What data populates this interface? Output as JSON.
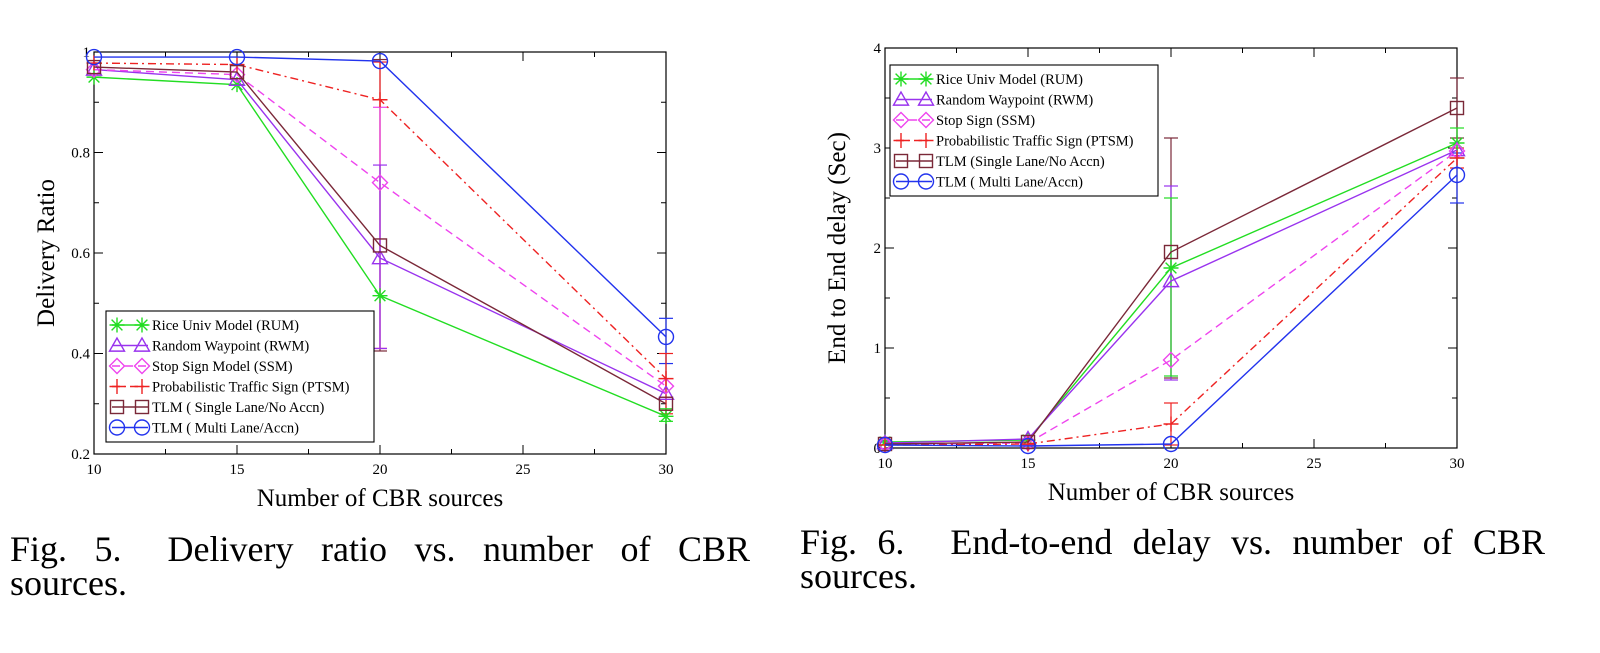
{
  "chart_data": [
    {
      "type": "line",
      "xlabel": "Number of CBR sources",
      "ylabel": "Delivery Ratio",
      "xlim": [
        10,
        30
      ],
      "ylim": [
        0.2,
        1.0
      ],
      "xticks": [
        10,
        15,
        20,
        25,
        30
      ],
      "yticks": [
        0.2,
        0.4,
        0.6,
        0.8,
        1
      ],
      "ytick_labels": [
        "0.2",
        "0.4",
        "0.6",
        "0.8",
        "1"
      ],
      "legend_position": "bottom-left",
      "series": [
        {
          "name": "Rice Univ Model (RUM)",
          "color": "#22dd22",
          "marker": "star",
          "dash": "",
          "x": [
            10,
            15,
            20,
            30
          ],
          "y": [
            0.95,
            0.935,
            0.515,
            0.275
          ]
        },
        {
          "name": "Random Waypoint (RWM)",
          "color": "#9933ee",
          "marker": "triangle",
          "dash": "",
          "x": [
            10,
            15,
            20,
            30
          ],
          "y": [
            0.965,
            0.945,
            0.59,
            0.32
          ]
        },
        {
          "name": "Stop Sign Model (SSM)",
          "color": "#ee44ee",
          "marker": "diamond",
          "dash": "8,5",
          "x": [
            10,
            15,
            20,
            30
          ],
          "y": [
            0.965,
            0.955,
            0.74,
            0.335
          ]
        },
        {
          "name": "Probabilistic Traffic Sign (PTSM)",
          "color": "#ee2222",
          "marker": "plus",
          "dash": "8,4,2,4",
          "x": [
            10,
            15,
            20,
            30
          ],
          "y": [
            0.978,
            0.975,
            0.905,
            0.35
          ]
        },
        {
          "name": "TLM ( Single Lane/No Accn)",
          "color": "#7a2838",
          "marker": "square",
          "dash": "",
          "x": [
            10,
            15,
            20,
            30
          ],
          "y": [
            0.97,
            0.96,
            0.615,
            0.3
          ]
        },
        {
          "name": "TLM ( Multi Lane/Accn)",
          "color": "#2233ee",
          "marker": "circle",
          "dash": "",
          "x": [
            10,
            15,
            20,
            30
          ],
          "y": [
            0.99,
            0.99,
            0.982,
            0.433
          ]
        }
      ],
      "error_bars": [
        {
          "color": "#7a2838",
          "x": 20,
          "low": 0.405,
          "high": 0.985
        },
        {
          "color": "#ee2222",
          "x": 20,
          "low": 0.41,
          "high": 0.98
        },
        {
          "color": "#ee44ee",
          "x": 20,
          "low": 0.41,
          "high": 0.89
        },
        {
          "color": "#9933ee",
          "x": 20,
          "low": 0.41,
          "high": 0.775
        },
        {
          "color": "#2233ee",
          "x": 30,
          "low": 0.38,
          "high": 0.47
        },
        {
          "color": "#ee2222",
          "x": 30,
          "low": 0.28,
          "high": 0.4
        },
        {
          "color": "#22dd22",
          "x": 30,
          "low": 0.265,
          "high": 0.29
        }
      ]
    },
    {
      "type": "line",
      "xlabel": "Number of CBR sources",
      "ylabel": "End to End delay (Sec)",
      "xlim": [
        10,
        30
      ],
      "ylim": [
        0,
        4
      ],
      "xticks": [
        10,
        15,
        20,
        25,
        30
      ],
      "yticks": [
        0,
        1,
        2,
        3,
        4
      ],
      "ytick_labels": [
        "0",
        "1",
        "2",
        "3",
        "4"
      ],
      "legend_position": "top-left",
      "series": [
        {
          "name": "Rice Univ Model (RUM)",
          "color": "#22dd22",
          "marker": "star",
          "dash": "",
          "x": [
            10,
            15,
            20,
            30
          ],
          "y": [
            0.06,
            0.08,
            1.8,
            3.05
          ]
        },
        {
          "name": "Random Waypoint (RWM)",
          "color": "#9933ee",
          "marker": "triangle",
          "dash": "",
          "x": [
            10,
            15,
            20,
            30
          ],
          "y": [
            0.05,
            0.09,
            1.67,
            2.98
          ]
        },
        {
          "name": "Stop Sign (SSM)",
          "color": "#ee44ee",
          "marker": "diamond",
          "dash": "8,5",
          "x": [
            10,
            15,
            20,
            30
          ],
          "y": [
            0.04,
            0.05,
            0.88,
            2.97
          ]
        },
        {
          "name": "Probabilistic Traffic Sign (PTSM)",
          "color": "#ee2222",
          "marker": "plus",
          "dash": "8,4,2,4",
          "x": [
            10,
            15,
            20,
            30
          ],
          "y": [
            0.03,
            0.04,
            0.24,
            2.9
          ]
        },
        {
          "name": "TLM (Single Lane/No Accn)",
          "color": "#7a2838",
          "marker": "square",
          "dash": "",
          "x": [
            10,
            15,
            20,
            30
          ],
          "y": [
            0.04,
            0.06,
            1.96,
            3.4
          ]
        },
        {
          "name": "TLM ( Multi Lane/Accn)",
          "color": "#2233ee",
          "marker": "circle",
          "dash": "",
          "x": [
            10,
            15,
            20,
            30
          ],
          "y": [
            0.03,
            0.02,
            0.04,
            2.73
          ]
        }
      ],
      "error_bars": [
        {
          "color": "#7a2838",
          "x": 20,
          "low": 0.7,
          "high": 3.1
        },
        {
          "color": "#9933ee",
          "x": 20,
          "low": 0.68,
          "high": 2.62
        },
        {
          "color": "#22dd22",
          "x": 20,
          "low": 0.72,
          "high": 2.5
        },
        {
          "color": "#ee2222",
          "x": 20,
          "low": 0.03,
          "high": 0.45
        },
        {
          "color": "#7a2838",
          "x": 30,
          "low": 3.1,
          "high": 3.7
        },
        {
          "color": "#22dd22",
          "x": 30,
          "low": 2.9,
          "high": 3.2
        },
        {
          "color": "#ee2222",
          "x": 30,
          "low": 2.8,
          "high": 3.0
        },
        {
          "color": "#2233ee",
          "x": 30,
          "low": 2.45,
          "high": 2.95
        }
      ]
    }
  ],
  "captions": [
    {
      "label": "Fig. 5.",
      "text": "Delivery ratio vs. number of CBR sources."
    },
    {
      "label": "Fig. 6.",
      "text": "End-to-end delay vs. number of CBR sources."
    }
  ]
}
